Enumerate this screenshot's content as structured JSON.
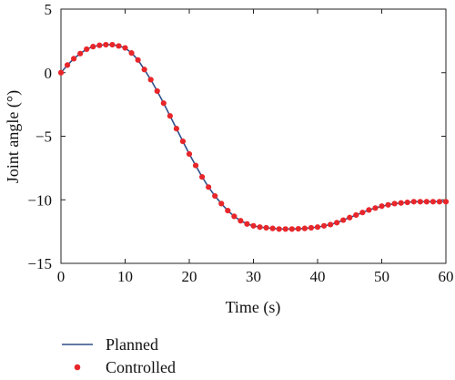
{
  "chart_data": {
    "type": "line",
    "xlabel": "Time (s)",
    "ylabel": "Joint angle (°)",
    "xlim": [
      0,
      60
    ],
    "ylim": [
      -15,
      5
    ],
    "xticks": [
      0,
      10,
      20,
      30,
      40,
      50,
      60
    ],
    "yticks": [
      5,
      0,
      -5,
      -10,
      -15
    ],
    "grid": false,
    "legend_position": "bottom-left, below plot",
    "series": [
      {
        "name": "Planned",
        "style": "line",
        "color": "#2e4f8c",
        "x": [
          0,
          1,
          2,
          3,
          4,
          5,
          6,
          7,
          8,
          9,
          10,
          11,
          12,
          13,
          14,
          15,
          16,
          17,
          18,
          19,
          20,
          21,
          22,
          23,
          24,
          25,
          26,
          27,
          28,
          29,
          30,
          31,
          32,
          33,
          34,
          35,
          36,
          37,
          38,
          39,
          40,
          41,
          42,
          43,
          44,
          45,
          46,
          47,
          48,
          49,
          50,
          51,
          52,
          53,
          54,
          55,
          56,
          57,
          58,
          59,
          60
        ],
        "y": [
          0.0,
          0.6,
          1.1,
          1.5,
          1.85,
          2.05,
          2.15,
          2.2,
          2.2,
          2.1,
          1.95,
          1.55,
          1.0,
          0.25,
          -0.55,
          -1.45,
          -2.4,
          -3.4,
          -4.4,
          -5.4,
          -6.4,
          -7.3,
          -8.2,
          -9.0,
          -9.7,
          -10.3,
          -10.85,
          -11.3,
          -11.65,
          -11.9,
          -12.05,
          -12.15,
          -12.2,
          -12.25,
          -12.3,
          -12.3,
          -12.3,
          -12.28,
          -12.25,
          -12.2,
          -12.15,
          -12.05,
          -11.95,
          -11.8,
          -11.6,
          -11.4,
          -11.2,
          -11.0,
          -10.8,
          -10.65,
          -10.5,
          -10.4,
          -10.3,
          -10.25,
          -10.2,
          -10.15,
          -10.15,
          -10.15,
          -10.15,
          -10.15,
          -10.15
        ]
      },
      {
        "name": "Controlled",
        "style": "markers",
        "color": "#e8262a",
        "x": [
          0,
          1,
          2,
          3,
          4,
          5,
          6,
          7,
          8,
          9,
          10,
          11,
          12,
          13,
          14,
          15,
          16,
          17,
          18,
          19,
          20,
          21,
          22,
          23,
          24,
          25,
          26,
          27,
          28,
          29,
          30,
          31,
          32,
          33,
          34,
          35,
          36,
          37,
          38,
          39,
          40,
          41,
          42,
          43,
          44,
          45,
          46,
          47,
          48,
          49,
          50,
          51,
          52,
          53,
          54,
          55,
          56,
          57,
          58,
          59,
          60
        ],
        "y": [
          0.0,
          0.6,
          1.1,
          1.5,
          1.85,
          2.05,
          2.15,
          2.2,
          2.2,
          2.1,
          1.95,
          1.55,
          1.0,
          0.25,
          -0.55,
          -1.45,
          -2.4,
          -3.4,
          -4.4,
          -5.4,
          -6.4,
          -7.3,
          -8.2,
          -9.0,
          -9.7,
          -10.3,
          -10.85,
          -11.3,
          -11.65,
          -11.9,
          -12.05,
          -12.15,
          -12.2,
          -12.25,
          -12.3,
          -12.3,
          -12.3,
          -12.28,
          -12.25,
          -12.2,
          -12.15,
          -12.05,
          -11.95,
          -11.8,
          -11.6,
          -11.4,
          -11.2,
          -11.0,
          -10.8,
          -10.65,
          -10.5,
          -10.4,
          -10.3,
          -10.25,
          -10.2,
          -10.15,
          -10.15,
          -10.15,
          -10.15,
          -10.15,
          -10.15
        ]
      }
    ]
  }
}
